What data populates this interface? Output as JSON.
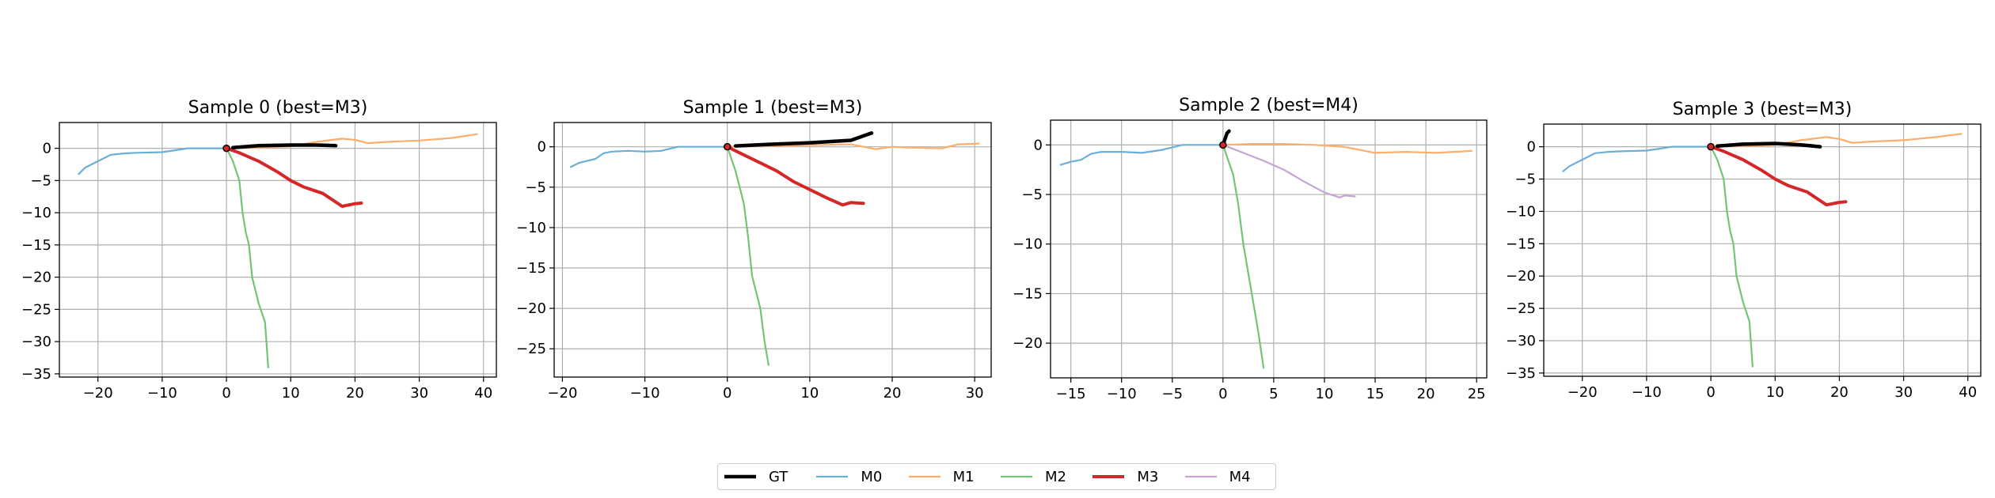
{
  "colors": {
    "GT": "#000000",
    "M0": "#6baed6",
    "M1": "#fdae6b",
    "M2": "#74c476",
    "M3": "#d62728",
    "M4": "#c5a5d5"
  },
  "legend": [
    {
      "name": "GT"
    },
    {
      "name": "M0"
    },
    {
      "name": "M1"
    },
    {
      "name": "M2"
    },
    {
      "name": "M3"
    },
    {
      "name": "M4"
    }
  ],
  "chart_data": [
    {
      "type": "line",
      "title": "Sample 0 (best=M3)",
      "xlim": [
        -26,
        42
      ],
      "ylim": [
        -35.5,
        4
      ],
      "xticks": [
        -20,
        -10,
        0,
        10,
        20,
        30,
        40
      ],
      "yticks": [
        0,
        -5,
        -10,
        -15,
        -20,
        -25,
        -30,
        -35
      ],
      "grid": true,
      "series": [
        {
          "name": "M0",
          "x": [
            -23,
            -22,
            -20,
            -18,
            -16,
            -14,
            -10,
            -8,
            -6,
            -4,
            -2,
            0
          ],
          "y": [
            -4,
            -3,
            -2,
            -1,
            -0.8,
            -0.7,
            -0.6,
            -0.3,
            0,
            0,
            0,
            0
          ]
        },
        {
          "name": "M1",
          "x": [
            0,
            5,
            10,
            14,
            18,
            20,
            22,
            25,
            30,
            35,
            39
          ],
          "y": [
            0,
            0.1,
            0.3,
            1,
            1.5,
            1.3,
            0.8,
            1,
            1.2,
            1.6,
            2.2
          ]
        },
        {
          "name": "M2",
          "x": [
            0,
            1,
            2,
            2.5,
            3,
            3.5,
            4,
            5,
            6,
            6.5
          ],
          "y": [
            0,
            -2,
            -5,
            -10,
            -13,
            -15,
            -20,
            -24,
            -27,
            -34
          ]
        },
        {
          "name": "M3",
          "x": [
            0,
            2,
            5,
            8,
            10,
            12,
            15,
            18,
            20,
            21
          ],
          "y": [
            0,
            -0.7,
            -2,
            -3.7,
            -5,
            -6,
            -7,
            -9,
            -8.6,
            -8.5
          ]
        },
        {
          "name": "GT",
          "x": [
            1,
            5,
            10,
            14,
            17
          ],
          "y": [
            0.1,
            0.4,
            0.5,
            0.5,
            0.4
          ]
        }
      ]
    },
    {
      "type": "line",
      "title": "Sample 1 (best=M3)",
      "xlim": [
        -21,
        32
      ],
      "ylim": [
        -28.5,
        3
      ],
      "xticks": [
        -20,
        -10,
        0,
        10,
        20,
        30
      ],
      "yticks": [
        0,
        -5,
        -10,
        -15,
        -20,
        -25
      ],
      "grid": true,
      "series": [
        {
          "name": "M0",
          "x": [
            -19,
            -18,
            -16,
            -15,
            -14,
            -12,
            -10,
            -8,
            -6,
            -4,
            -2,
            0
          ],
          "y": [
            -2.5,
            -2,
            -1.5,
            -0.8,
            -0.6,
            -0.5,
            -0.6,
            -0.5,
            0,
            0,
            0,
            0
          ]
        },
        {
          "name": "M1",
          "x": [
            0,
            5,
            10,
            15,
            18,
            20,
            22,
            26,
            28,
            30.5
          ],
          "y": [
            0,
            0.1,
            0.2,
            0.3,
            -0.3,
            0,
            -0.1,
            -0.2,
            0.3,
            0.4
          ]
        },
        {
          "name": "M2",
          "x": [
            0,
            1,
            2,
            2.5,
            3,
            4,
            4.5,
            5
          ],
          "y": [
            0,
            -3,
            -7,
            -11,
            -16,
            -20,
            -24,
            -27
          ]
        },
        {
          "name": "M3",
          "x": [
            0,
            2,
            4,
            6,
            8,
            10,
            12,
            14,
            15,
            16.5
          ],
          "y": [
            0,
            -1,
            -2,
            -3,
            -4.3,
            -5.3,
            -6.3,
            -7.2,
            -6.9,
            -7
          ]
        },
        {
          "name": "GT",
          "x": [
            1,
            5,
            10,
            15,
            17.5
          ],
          "y": [
            0.1,
            0.3,
            0.5,
            0.8,
            1.7
          ]
        }
      ]
    },
    {
      "type": "line",
      "title": "Sample 2 (best=M4)",
      "xlim": [
        -17,
        26
      ],
      "ylim": [
        -23.5,
        2.5
      ],
      "xticks": [
        -15,
        -10,
        -5,
        0,
        5,
        10,
        15,
        20,
        25
      ],
      "yticks": [
        0,
        -5,
        -10,
        -15,
        -20
      ],
      "grid": true,
      "series": [
        {
          "name": "M0",
          "x": [
            -16,
            -15,
            -14,
            -13,
            -12,
            -10,
            -8,
            -6,
            -4,
            -2,
            0
          ],
          "y": [
            -2,
            -1.7,
            -1.5,
            -0.9,
            -0.7,
            -0.7,
            -0.8,
            -0.5,
            0,
            0,
            0
          ]
        },
        {
          "name": "M1",
          "x": [
            0,
            3,
            6,
            9,
            12,
            15,
            18,
            21,
            24.5
          ],
          "y": [
            0,
            0.1,
            0.1,
            0,
            -0.2,
            -0.8,
            -0.7,
            -0.8,
            -0.6
          ]
        },
        {
          "name": "M2",
          "x": [
            0,
            1,
            1.5,
            2,
            2.5,
            3,
            3.5,
            4
          ],
          "y": [
            0,
            -3,
            -6,
            -10,
            -13,
            -16,
            -19,
            -22.5
          ]
        },
        {
          "name": "M4",
          "x": [
            0,
            2,
            4,
            6,
            8,
            10,
            11.5,
            12,
            13
          ],
          "y": [
            0,
            -0.8,
            -1.6,
            -2.5,
            -3.7,
            -4.8,
            -5.3,
            -5.1,
            -5.2
          ]
        },
        {
          "name": "GT",
          "x": [
            0,
            0.2,
            0.4,
            0.6
          ],
          "y": [
            0,
            0.6,
            1.2,
            1.4
          ]
        }
      ]
    },
    {
      "type": "line",
      "title": "Sample 3 (best=M3)",
      "xlim": [
        -26,
        42
      ],
      "ylim": [
        -35.5,
        3.5
      ],
      "xticks": [
        -20,
        -10,
        0,
        10,
        20,
        30,
        40
      ],
      "yticks": [
        0,
        -5,
        -10,
        -15,
        -20,
        -25,
        -30,
        -35
      ],
      "grid": true,
      "series": [
        {
          "name": "M0",
          "x": [
            -23,
            -22,
            -20,
            -18,
            -16,
            -14,
            -10,
            -8,
            -6,
            -4,
            -2,
            0
          ],
          "y": [
            -3.8,
            -3,
            -2,
            -1,
            -0.8,
            -0.7,
            -0.6,
            -0.3,
            0,
            0,
            0,
            0
          ]
        },
        {
          "name": "M1",
          "x": [
            0,
            5,
            10,
            14,
            18,
            20,
            22,
            25,
            30,
            35,
            39
          ],
          "y": [
            0,
            0.1,
            0.3,
            1,
            1.5,
            1.2,
            0.6,
            0.8,
            1,
            1.5,
            2
          ]
        },
        {
          "name": "M2",
          "x": [
            0,
            1,
            2,
            2.5,
            3,
            3.5,
            4,
            5,
            6,
            6.5
          ],
          "y": [
            0,
            -2,
            -5,
            -10,
            -13,
            -15,
            -20,
            -24,
            -27,
            -34
          ]
        },
        {
          "name": "M3",
          "x": [
            0,
            2,
            5,
            8,
            10,
            12,
            15,
            18,
            20,
            21
          ],
          "y": [
            0,
            -0.7,
            -2,
            -3.7,
            -5,
            -6,
            -7,
            -9,
            -8.6,
            -8.5
          ]
        },
        {
          "name": "GT",
          "x": [
            1,
            5,
            10,
            14,
            17
          ],
          "y": [
            0.1,
            0.4,
            0.5,
            0.3,
            0
          ]
        }
      ]
    }
  ]
}
